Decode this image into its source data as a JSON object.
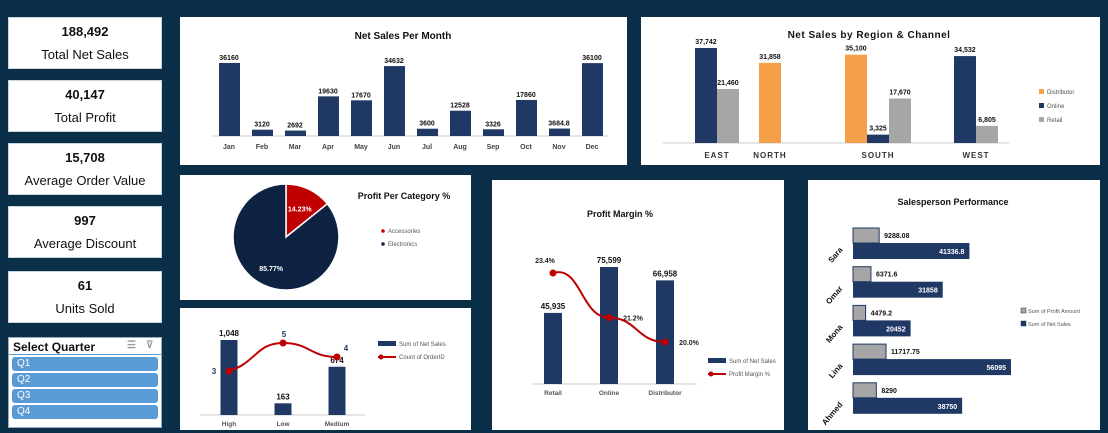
{
  "kpis": [
    {
      "value": "188,492",
      "label": "Total Net Sales"
    },
    {
      "value": "40,147",
      "label": "Total Profit"
    },
    {
      "value": "15,708",
      "label": "Average Order Value"
    },
    {
      "value": "997",
      "label": "Average Discount"
    },
    {
      "value": "61",
      "label": "Units Sold"
    }
  ],
  "slicer": {
    "title": "Select Quarter",
    "items": [
      "Q1",
      "Q2",
      "Q3",
      "Q4"
    ],
    "icons": [
      "multi-select-icon",
      "clear-filter-icon"
    ]
  },
  "colors": {
    "background": "#0b2f48",
    "navy": "#1f3864",
    "orange": "#f4a04b",
    "gray": "#a6a6a6",
    "red": "#c00000",
    "slicer": "#5b9bd5"
  },
  "chart_data": [
    {
      "type": "bar",
      "title": "Net Sales Per Month",
      "categories": [
        "Jan",
        "Feb",
        "Mar",
        "Apr",
        "May",
        "Jun",
        "Jul",
        "Aug",
        "Sep",
        "Oct",
        "Nov",
        "Dec"
      ],
      "values": [
        36160,
        3120,
        2692,
        19630,
        17670,
        34632,
        3600,
        12528,
        3326,
        17860,
        3684.8,
        36100
      ],
      "labels": [
        "36160",
        "3120",
        "2692",
        "19630",
        "17670",
        "34632",
        "3600",
        "12528",
        "3326",
        "17860",
        "3684.8",
        "36100"
      ]
    },
    {
      "type": "bar",
      "title": "Net Sales by Region & Channel",
      "categories": [
        "EAST",
        "NORTH",
        "SOUTH",
        "WEST"
      ],
      "series": [
        {
          "name": "Distributor",
          "values": [
            null,
            31858,
            35100,
            null
          ],
          "labels": [
            "",
            "31,858",
            "35,100",
            ""
          ]
        },
        {
          "name": "Online",
          "values": [
            37742,
            null,
            3325,
            34532
          ],
          "labels": [
            "37,742",
            "",
            "3,325",
            "34,532"
          ]
        },
        {
          "name": "Retail",
          "values": [
            21460,
            null,
            17670,
            6805
          ],
          "labels": [
            "21,460",
            "",
            "17,670",
            "6,805"
          ]
        }
      ],
      "legend": "right"
    },
    {
      "type": "pie",
      "title": "Profit Per Category %",
      "categories": [
        "Accessories",
        "Electronics"
      ],
      "values": [
        14.23,
        85.77
      ],
      "labels": [
        "14.23%",
        "85.77%"
      ],
      "legend": "right"
    },
    {
      "type": "bar",
      "title": "",
      "categories": [
        "High",
        "Low",
        "Medium"
      ],
      "series": [
        {
          "name": "Sum of Net Sales",
          "values": [
            1048,
            163,
            674
          ],
          "labels": [
            "1,048",
            "163",
            "674"
          ]
        },
        {
          "name": "Count of OrderID",
          "type": "line",
          "values": [
            3,
            5,
            4
          ],
          "labels": [
            "3",
            "5",
            "4"
          ]
        }
      ],
      "legend": "right"
    },
    {
      "type": "bar",
      "title": "Profit Margin %",
      "categories": [
        "Retail",
        "Online",
        "Distributor"
      ],
      "series": [
        {
          "name": "Sum of Net Sales",
          "values": [
            45935,
            75599,
            66958
          ],
          "labels": [
            "45,935",
            "75,599",
            "66,958"
          ]
        },
        {
          "name": "Profit Margin %",
          "type": "line",
          "values": [
            23.4,
            21.2,
            20.0
          ],
          "labels": [
            "23.4%",
            "21.2%",
            "20.0%"
          ]
        }
      ],
      "legend": "right"
    },
    {
      "type": "bar",
      "orientation": "horizontal",
      "title": "Salesperson Performance",
      "categories": [
        "Sara",
        "Omar",
        "Mona",
        "Lina",
        "Ahmed"
      ],
      "series": [
        {
          "name": "Sum of Profit Amount",
          "values": [
            9288.08,
            6371.6,
            4479.2,
            11717.75,
            8290
          ],
          "labels": [
            "9288.08",
            "6371.6",
            "4479.2",
            "11717.75",
            "8290"
          ]
        },
        {
          "name": "Sum of Net Sales",
          "values": [
            41336.8,
            31858,
            20452,
            56095,
            38750
          ],
          "labels": [
            "41336.8",
            "31858",
            "20452",
            "56095",
            "38750"
          ]
        }
      ],
      "legend": "right"
    }
  ]
}
